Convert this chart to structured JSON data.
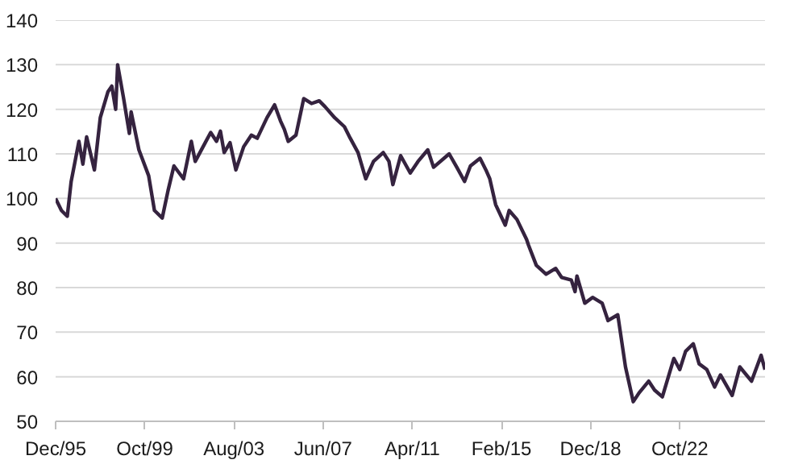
{
  "chart_data": {
    "type": "line",
    "grid": "y",
    "marker": "none",
    "line_style": "solid",
    "xlim": [
      "1995-12",
      "2026-06"
    ],
    "xticks": [
      {
        "value": "1995-12",
        "label": "Dec/95"
      },
      {
        "value": "1999-10",
        "label": "Oct/99"
      },
      {
        "value": "2003-08",
        "label": "Aug/03"
      },
      {
        "value": "2007-06",
        "label": "Jun/07"
      },
      {
        "value": "2011-04",
        "label": "Apr/11"
      },
      {
        "value": "2015-02",
        "label": "Feb/15"
      },
      {
        "value": "2018-12",
        "label": "Dec/18"
      },
      {
        "value": "2022-10",
        "label": "Oct/22"
      }
    ],
    "ylim": [
      50,
      140
    ],
    "yticks": [
      50,
      60,
      70,
      80,
      90,
      100,
      110,
      120,
      130,
      140
    ],
    "series": [
      {
        "color": "#35233f",
        "x": [
          "1995-12",
          "1996-03",
          "1996-06",
          "1996-08",
          "1996-12",
          "1997-02",
          "1997-04",
          "1997-08",
          "1997-11",
          "1998-03",
          "1998-05",
          "1998-07",
          "1998-08",
          "1998-11",
          "1999-02",
          "1999-03",
          "1999-07",
          "1999-12",
          "2000-03",
          "2000-07",
          "2000-10",
          "2001-01",
          "2001-06",
          "2001-10",
          "2001-12",
          "2002-08",
          "2002-11",
          "2003-01",
          "2003-03",
          "2003-06",
          "2003-09",
          "2004-01",
          "2004-05",
          "2004-08",
          "2005-01",
          "2005-05",
          "2005-08",
          "2005-10",
          "2005-12",
          "2006-04",
          "2006-08",
          "2006-12",
          "2007-04",
          "2007-07",
          "2007-12",
          "2008-05",
          "2008-08",
          "2008-12",
          "2009-04",
          "2009-08",
          "2010-01",
          "2010-04",
          "2010-06",
          "2010-10",
          "2011-03",
          "2011-07",
          "2011-12",
          "2012-03",
          "2012-11",
          "2013-03",
          "2013-07",
          "2013-10",
          "2014-03",
          "2014-06",
          "2014-08",
          "2014-11",
          "2015-04",
          "2015-06",
          "2015-10",
          "2016-03",
          "2016-04",
          "2016-08",
          "2017-01",
          "2017-06",
          "2017-09",
          "2018-02",
          "2018-04",
          "2018-05",
          "2018-09",
          "2019-01",
          "2019-06",
          "2019-09",
          "2020-02",
          "2020-06",
          "2020-10",
          "2021-01",
          "2021-06",
          "2021-09",
          "2022-01",
          "2022-07",
          "2022-10",
          "2023-01",
          "2023-05",
          "2023-08",
          "2023-12",
          "2024-04",
          "2024-07",
          "2025-01",
          "2025-05",
          "2025-11",
          "2026-04",
          "2026-06"
        ],
        "values": [
          100,
          97.3,
          96,
          103.8,
          112.8,
          107.7,
          113.8,
          106.4,
          118.1,
          123.9,
          125.2,
          120,
          130,
          122.6,
          114.6,
          119.4,
          110.9,
          105.1,
          97.3,
          95.6,
          101.8,
          107.3,
          104.4,
          112.8,
          108.3,
          114.8,
          112.8,
          115.1,
          110.3,
          112.5,
          106.4,
          111.6,
          114.2,
          113.5,
          118.1,
          121,
          117.4,
          115.5,
          112.8,
          114.2,
          122.4,
          121.3,
          121.9,
          120.6,
          118.1,
          116.1,
          113.5,
          110.3,
          104.4,
          108.3,
          110.3,
          108.3,
          103.1,
          109.6,
          105.7,
          108.3,
          110.9,
          107,
          110,
          107,
          103.8,
          107.3,
          109,
          106.4,
          104.4,
          98.6,
          94,
          97.3,
          95.3,
          90.8,
          89.5,
          85,
          83,
          84.3,
          82.3,
          81.7,
          79.1,
          82.6,
          76.5,
          77.8,
          76.5,
          72.6,
          73.9,
          62.2,
          54.4,
          56.4,
          59,
          57,
          55.5,
          64.1,
          61.6,
          65.7,
          67.4,
          62.9,
          61.6,
          57.7,
          60.4,
          55.8,
          62.2,
          59,
          64.8,
          61.6
        ]
      }
    ]
  }
}
